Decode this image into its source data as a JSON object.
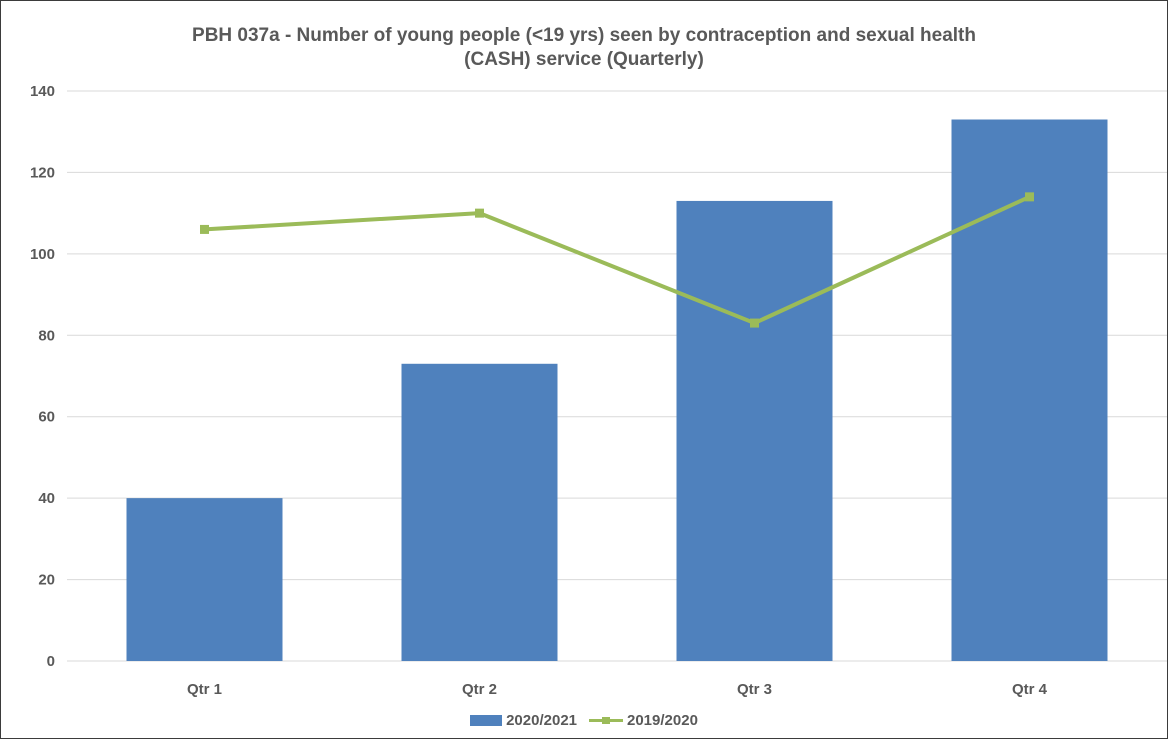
{
  "chart_data": {
    "type": "bar",
    "title_line1": "PBH 037a - Number of young people (<19 yrs) seen by contraception and sexual health",
    "title_line2": "(CASH) service (Quarterly)",
    "categories": [
      "Qtr 1",
      "Qtr 2",
      "Qtr 3",
      "Qtr 4"
    ],
    "series": [
      {
        "name": "2020/2021",
        "type": "bar",
        "values": [
          40,
          73,
          113,
          133
        ],
        "color": "#4F81BD"
      },
      {
        "name": "2019/2020",
        "type": "line",
        "values": [
          106,
          110,
          83,
          114
        ],
        "color": "#9BBB59"
      }
    ],
    "ylim": [
      0,
      140
    ],
    "yticks": [
      0,
      20,
      40,
      60,
      80,
      100,
      120,
      140
    ],
    "grid": true,
    "legend_position": "bottom"
  }
}
